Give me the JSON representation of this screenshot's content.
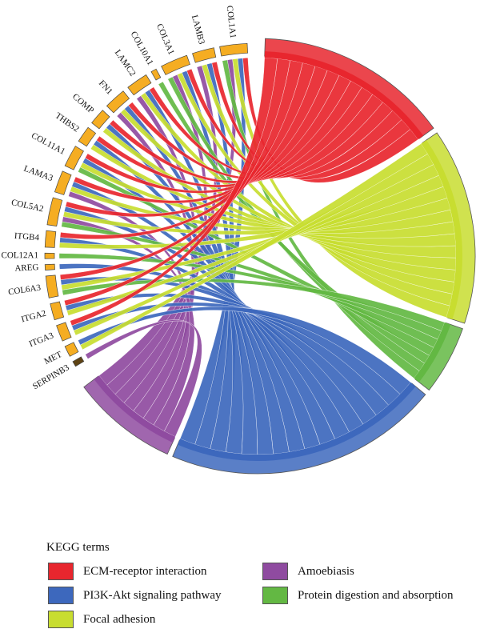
{
  "genes": [
    "COL1A1",
    "LAMB3",
    "COL3A1",
    "COL10A1",
    "LAMC2",
    "FN1",
    "COMP",
    "THBS2",
    "COL11A1",
    "LAMA3",
    "COL5A2",
    "ITGB4",
    "COL12A1",
    "AREG",
    "COL6A3",
    "ITGA2",
    "ITGA3",
    "MET",
    "SERPINB3"
  ],
  "gene_color": "#f5ad22",
  "serpinb3_color": "#5e4313",
  "terms": [
    {
      "key": "ecm",
      "name": "ECM-receptor interaction",
      "color": "#e8262e"
    },
    {
      "key": "pi3k",
      "name": "PI3K-Akt signaling pathway",
      "color": "#3d68bd"
    },
    {
      "key": "focal",
      "name": "Focal adhesion",
      "color": "#c8dd30"
    },
    {
      "key": "amoe",
      "name": "Amoebiasis",
      "color": "#8f4ba0"
    },
    {
      "key": "prot",
      "name": "Protein digestion and absorption",
      "color": "#63b843"
    }
  ],
  "membership": {
    "COL1A1": [
      "ecm",
      "pi3k",
      "focal",
      "amoe",
      "prot"
    ],
    "LAMB3": [
      "ecm",
      "pi3k",
      "focal",
      "amoe"
    ],
    "COL3A1": [
      "ecm",
      "pi3k",
      "focal",
      "amoe",
      "prot"
    ],
    "COL10A1": [
      "prot"
    ],
    "LAMC2": [
      "ecm",
      "pi3k",
      "focal",
      "amoe"
    ],
    "FN1": [
      "ecm",
      "pi3k",
      "focal",
      "amoe"
    ],
    "COMP": [
      "ecm",
      "pi3k",
      "focal"
    ],
    "THBS2": [
      "ecm",
      "pi3k",
      "focal"
    ],
    "COL11A1": [
      "ecm",
      "pi3k",
      "focal",
      "prot"
    ],
    "LAMA3": [
      "ecm",
      "pi3k",
      "focal",
      "amoe"
    ],
    "COL5A2": [
      "ecm",
      "pi3k",
      "focal",
      "amoe",
      "prot"
    ],
    "ITGB4": [
      "ecm",
      "pi3k",
      "focal"
    ],
    "COL12A1": [
      "prot"
    ],
    "AREG": [
      "pi3k"
    ],
    "COL6A3": [
      "ecm",
      "pi3k",
      "focal",
      "prot"
    ],
    "ITGA2": [
      "ecm",
      "pi3k",
      "focal"
    ],
    "ITGA3": [
      "ecm",
      "pi3k",
      "focal"
    ],
    "MET": [
      "pi3k",
      "focal"
    ],
    "SERPINB3": [
      "amoe"
    ]
  },
  "legend": {
    "title": "KEGG terms"
  }
}
